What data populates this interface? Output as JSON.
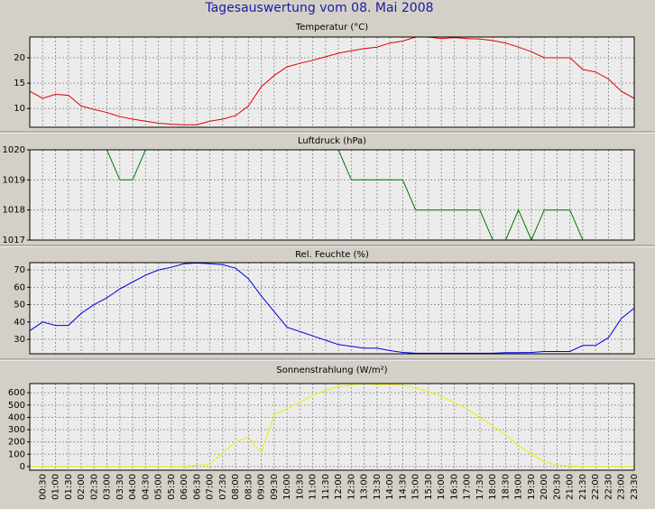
{
  "title": "Tagesauswertung vom 08. Mai 2008",
  "chart_data": [
    {
      "type": "line",
      "title": "Temperatur (°C)",
      "color": "#e00000",
      "values": [
        13.4,
        12,
        12.8,
        12.6,
        10.5,
        9.8,
        9.2,
        8.4,
        7.9,
        7.5,
        7.1,
        6.9,
        6.8,
        6.8,
        7.5,
        7.9,
        8.6,
        10.5,
        14.3,
        16.5,
        18.2,
        18.9,
        19.5,
        20.2,
        20.9,
        21.4,
        21.8,
        22.1,
        22.9,
        23.3,
        24.1,
        24.1,
        23.8,
        24,
        23.8,
        23.7,
        23.4,
        22.9,
        22.1,
        21.2,
        20,
        20,
        20,
        17.7,
        17.2,
        15.8,
        13.4,
        12
      ],
      "ylim": [
        6.3,
        24.1
      ],
      "yticks": [
        10,
        15,
        20
      ],
      "grid": true
    },
    {
      "type": "line",
      "title": "Luftdruck (hPa)",
      "color": "#007a00",
      "values": [
        1020,
        1020,
        1020,
        1020,
        1020,
        1020,
        1020,
        1019,
        1019,
        1020,
        1020,
        1020,
        1020,
        1020,
        1020,
        1020,
        1020,
        1020,
        1020,
        1020,
        1020,
        1020,
        1020,
        1020,
        1020,
        1019,
        1019,
        1019,
        1019,
        1019,
        1018,
        1018,
        1018,
        1018,
        1018,
        1018,
        1017,
        1017,
        1018,
        1017,
        1018,
        1018,
        1018,
        1017,
        1017,
        1017,
        1017,
        1017
      ],
      "ylim": [
        1017,
        1020
      ],
      "yticks": [
        1017,
        1018,
        1019,
        1020
      ],
      "grid": true
    },
    {
      "type": "line",
      "title": "Rel. Feuchte (%)",
      "color": "#0000e0",
      "values": [
        35,
        40,
        38,
        38,
        45,
        50,
        54,
        59,
        63,
        67,
        70,
        71.5,
        73.5,
        74,
        73.5,
        73,
        71,
        65,
        55,
        46,
        37,
        34.5,
        32,
        29.5,
        27,
        26,
        25,
        25,
        23.5,
        22.5,
        22,
        22,
        22,
        22,
        22,
        22,
        22,
        22.3,
        22.3,
        22.5,
        23,
        23,
        23,
        26.5,
        26.5,
        31,
        42,
        48
      ],
      "ylim": [
        21.7,
        74.2
      ],
      "yticks": [
        30,
        40,
        50,
        60,
        70
      ],
      "grid": true
    },
    {
      "type": "line",
      "title": "Sonnenstrahlung (W/m²)",
      "color": "#f0f000",
      "categories": [
        null,
        "00:30",
        "01:00",
        "01:30",
        "02:00",
        "02:30",
        "03:00",
        "03:30",
        "04:00",
        "04:30",
        "05:00",
        "05:30",
        "06:00",
        "06:30",
        "07:00",
        "07:30",
        "08:00",
        "08:30",
        "09:00",
        "09:30",
        "10:00",
        "10:30",
        "11:00",
        "11:30",
        "12:00",
        "12:30",
        "13:00",
        "13:30",
        "14:00",
        "14:30",
        "15:00",
        "15:30",
        "16:00",
        "16:30",
        "17:00",
        "17:30",
        "18:00",
        "18:30",
        "19:00",
        "19:30",
        "20:00",
        "20:30",
        "21:00",
        "21:30",
        "22:00",
        "22:30",
        "23:00",
        "23:30"
      ],
      "values": [
        0,
        0,
        0,
        0,
        0,
        0,
        0,
        0,
        0,
        0,
        0,
        0,
        2,
        8,
        20,
        110,
        200,
        240,
        110,
        420,
        470,
        520,
        580,
        620,
        650,
        665,
        675,
        665,
        670,
        660,
        640,
        610,
        570,
        520,
        470,
        400,
        330,
        260,
        170,
        100,
        40,
        10,
        5,
        0,
        0,
        0,
        0,
        0
      ],
      "ylim": [
        -30,
        675
      ],
      "yticks": [
        0,
        100,
        200,
        300,
        400,
        500,
        600
      ],
      "grid": true
    }
  ]
}
